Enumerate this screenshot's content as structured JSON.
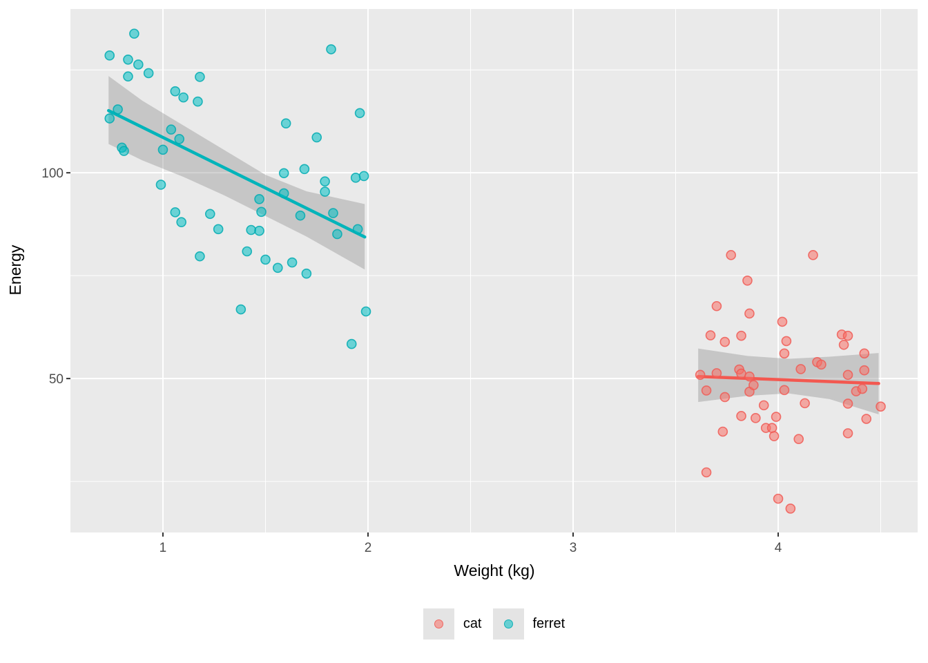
{
  "chart_data": {
    "type": "scatter",
    "title": "",
    "xlabel": "Weight (kg)",
    "ylabel": "Energy",
    "x_ticks": [
      1,
      2,
      3,
      4
    ],
    "x_tick_labels": [
      "1",
      "2",
      "3",
      "4"
    ],
    "y_ticks": [
      100,
      50
    ],
    "y_tick_labels": [
      "100",
      "50"
    ],
    "x_minor_ticks": [
      1.5,
      2.5,
      3.5,
      4.5
    ],
    "y_minor_ticks": [
      125,
      75,
      25
    ],
    "xlim": [
      0.549,
      4.68
    ],
    "ylim": [
      12.6,
      139.8
    ],
    "grid": "white major+minor gridlines on gray panel",
    "legend_position": "bottom-center",
    "series": [
      {
        "name": "cat",
        "color": "#F8766D",
        "line_color": "#F35850",
        "point_fill": "rgba(248,112,102,0.55)",
        "point_stroke": "rgba(240,90,85,0.85)",
        "smooth_line": {
          "x": [
            3.61,
            4.49
          ],
          "y": [
            50.5,
            48.8
          ]
        },
        "ci_band": {
          "upper": [
            [
              3.61,
              57.3
            ],
            [
              3.85,
              55.5
            ],
            [
              4.05,
              54.8
            ],
            [
              4.25,
              55.3
            ],
            [
              4.49,
              56.2
            ]
          ],
          "lower": [
            [
              3.61,
              44.3
            ],
            [
              3.85,
              45.8
            ],
            [
              4.05,
              46.4
            ],
            [
              4.25,
              45.0
            ],
            [
              4.49,
              41.3
            ]
          ]
        },
        "points": [
          [
            3.62,
            50.9
          ],
          [
            3.65,
            47.1
          ],
          [
            3.65,
            27.2
          ],
          [
            3.67,
            60.5
          ],
          [
            3.7,
            67.6
          ],
          [
            3.7,
            51.3
          ],
          [
            3.73,
            37.1
          ],
          [
            3.74,
            58.9
          ],
          [
            3.74,
            45.5
          ],
          [
            3.77,
            80.0
          ],
          [
            3.81,
            52.2
          ],
          [
            3.82,
            60.4
          ],
          [
            3.82,
            51.2
          ],
          [
            3.82,
            40.9
          ],
          [
            3.85,
            73.8
          ],
          [
            3.86,
            65.8
          ],
          [
            3.86,
            50.5
          ],
          [
            3.86,
            46.8
          ],
          [
            3.88,
            48.4
          ],
          [
            3.89,
            40.4
          ],
          [
            3.93,
            43.5
          ],
          [
            3.94,
            38.0
          ],
          [
            3.97,
            38.0
          ],
          [
            3.98,
            36.0
          ],
          [
            3.99,
            40.7
          ],
          [
            4.0,
            20.8
          ],
          [
            4.02,
            63.8
          ],
          [
            4.03,
            56.1
          ],
          [
            4.03,
            47.2
          ],
          [
            4.04,
            59.1
          ],
          [
            4.06,
            18.4
          ],
          [
            4.1,
            35.3
          ],
          [
            4.11,
            52.3
          ],
          [
            4.13,
            44.0
          ],
          [
            4.17,
            80.0
          ],
          [
            4.19,
            54.0
          ],
          [
            4.21,
            53.4
          ],
          [
            4.31,
            60.7
          ],
          [
            4.32,
            58.2
          ],
          [
            4.34,
            60.4
          ],
          [
            4.34,
            50.9
          ],
          [
            4.34,
            43.9
          ],
          [
            4.34,
            36.7
          ],
          [
            4.38,
            46.9
          ],
          [
            4.41,
            47.5
          ],
          [
            4.42,
            56.1
          ],
          [
            4.42,
            52.0
          ],
          [
            4.43,
            40.2
          ],
          [
            4.5,
            43.2
          ]
        ]
      },
      {
        "name": "ferret",
        "color": "#00BFC4",
        "line_color": "#00B4BA",
        "point_fill": "rgba(0,190,195,0.55)",
        "point_stroke": "rgba(0,170,176,0.85)",
        "smooth_line": {
          "x": [
            0.735,
            1.984
          ],
          "y": [
            115.1,
            84.4
          ]
        },
        "ci_band": {
          "upper": [
            [
              0.735,
              123.5
            ],
            [
              0.9,
              117.5
            ],
            [
              1.1,
              111.5
            ],
            [
              1.3,
              105.5
            ],
            [
              1.5,
              99.5
            ],
            [
              1.7,
              95.5
            ],
            [
              1.984,
              92.4
            ]
          ],
          "lower": [
            [
              0.735,
              107.0
            ],
            [
              0.9,
              103.0
            ],
            [
              1.1,
              99.0
            ],
            [
              1.3,
              94.5
            ],
            [
              1.5,
              89.5
            ],
            [
              1.7,
              84.5
            ],
            [
              1.984,
              76.5
            ]
          ]
        },
        "points": [
          [
            0.74,
            128.5
          ],
          [
            0.74,
            113.2
          ],
          [
            0.78,
            115.4
          ],
          [
            0.8,
            106.1
          ],
          [
            0.81,
            105.3
          ],
          [
            0.83,
            127.5
          ],
          [
            0.83,
            123.4
          ],
          [
            0.86,
            133.8
          ],
          [
            0.88,
            126.3
          ],
          [
            0.93,
            124.2
          ],
          [
            0.99,
            97.1
          ],
          [
            1.0,
            105.6
          ],
          [
            1.04,
            110.5
          ],
          [
            1.06,
            119.8
          ],
          [
            1.06,
            90.4
          ],
          [
            1.08,
            108.2
          ],
          [
            1.09,
            88.0
          ],
          [
            1.1,
            118.3
          ],
          [
            1.17,
            117.3
          ],
          [
            1.18,
            123.3
          ],
          [
            1.18,
            79.7
          ],
          [
            1.23,
            90.0
          ],
          [
            1.27,
            86.3
          ],
          [
            1.38,
            66.8
          ],
          [
            1.41,
            80.9
          ],
          [
            1.43,
            86.1
          ],
          [
            1.47,
            93.6
          ],
          [
            1.47,
            85.9
          ],
          [
            1.48,
            90.5
          ],
          [
            1.5,
            78.9
          ],
          [
            1.56,
            76.9
          ],
          [
            1.59,
            95.0
          ],
          [
            1.59,
            99.9
          ],
          [
            1.6,
            112.0
          ],
          [
            1.63,
            78.2
          ],
          [
            1.67,
            89.6
          ],
          [
            1.69,
            100.9
          ],
          [
            1.7,
            75.5
          ],
          [
            1.75,
            108.6
          ],
          [
            1.79,
            97.9
          ],
          [
            1.79,
            95.4
          ],
          [
            1.82,
            130.0
          ],
          [
            1.83,
            90.2
          ],
          [
            1.85,
            85.1
          ],
          [
            1.92,
            58.4
          ],
          [
            1.94,
            98.8
          ],
          [
            1.95,
            86.3
          ],
          [
            1.96,
            114.5
          ],
          [
            1.98,
            99.2
          ],
          [
            1.99,
            66.3
          ]
        ]
      }
    ]
  },
  "legend": {
    "items": [
      {
        "label": "cat",
        "color": "#F8766D"
      },
      {
        "label": "ferret",
        "color": "#00BFC4"
      }
    ]
  },
  "style_colors": {
    "panel_bg": "#EAEAEA",
    "grid_color": "#FFFFFF",
    "band_color": "rgba(140,140,140,0.38)",
    "tick_mark_color": "#333333",
    "tick_label_color": "#4D4D4D",
    "legend_key_bg": "#E4E4E4"
  }
}
